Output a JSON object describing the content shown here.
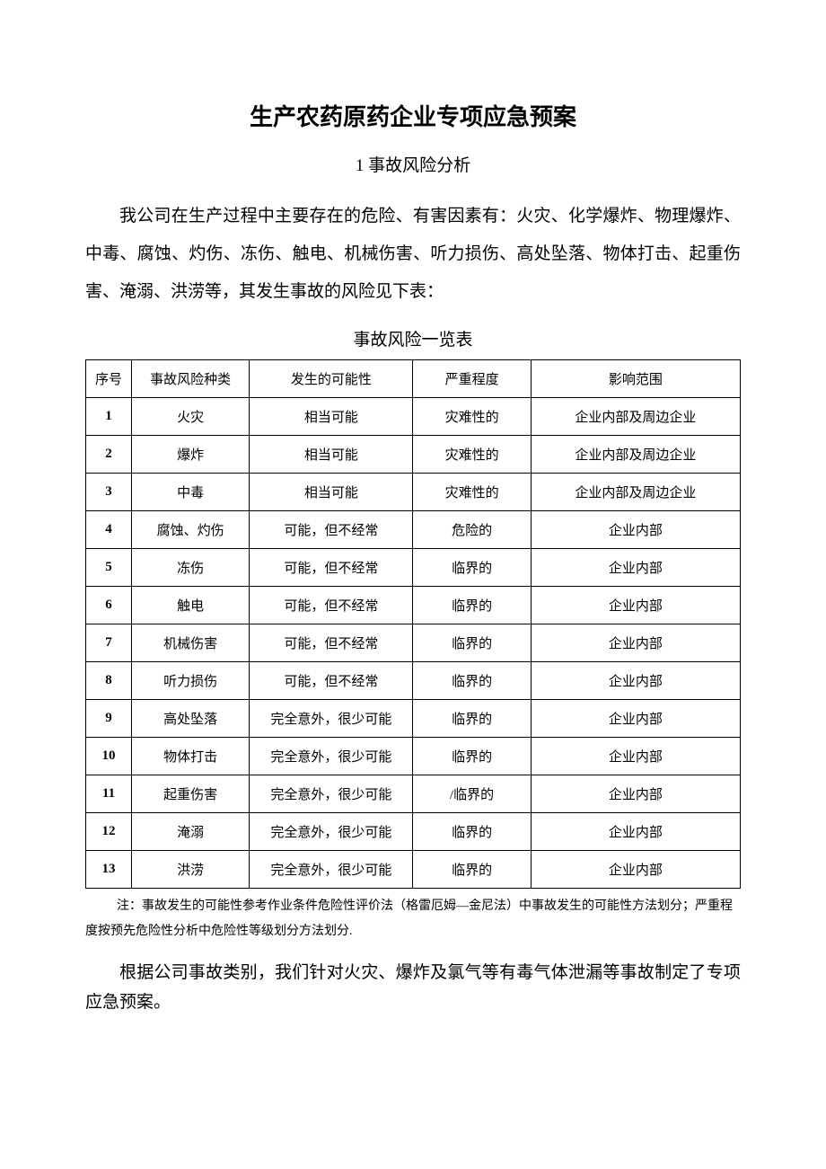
{
  "title": "生产农药原药企业专项应急预案",
  "subtitle": "1 事故风险分析",
  "intro": "我公司在生产过程中主要存在的危险、有害因素有：火灾、化学爆炸、物理爆炸、中毒、腐蚀、灼伤、冻伤、触电、机械伤害、听力损伤、高处坠落、物体打击、起重伤害、淹溺、洪涝等，其发生事故的风险见下表：",
  "table_caption": "事故风险一览表",
  "table": {
    "columns": [
      "序号",
      "事故风险种类",
      "发生的可能性",
      "严重程度",
      "影响范围"
    ],
    "col_widths": [
      "7%",
      "18%",
      "25%",
      "18%",
      "32%"
    ],
    "rows": [
      [
        "1",
        "火灾",
        "相当可能",
        "灾难性的",
        "企业内部及周边企业"
      ],
      [
        "2",
        "爆炸",
        "相当可能",
        "灾难性的",
        "企业内部及周边企业"
      ],
      [
        "3",
        "中毒",
        "相当可能",
        "灾难性的",
        "企业内部及周边企业"
      ],
      [
        "4",
        "腐蚀、灼伤",
        "可能，但不经常",
        "危险的",
        "企业内部"
      ],
      [
        "5",
        "冻伤",
        "可能，但不经常",
        "临界的",
        "企业内部"
      ],
      [
        "6",
        "触电",
        "可能，但不经常",
        "临界的",
        "企业内部"
      ],
      [
        "7",
        "机械伤害",
        "可能，但不经常",
        "临界的",
        "企业内部"
      ],
      [
        "8",
        "听力损伤",
        "可能，但不经常",
        "临界的",
        "企业内部"
      ],
      [
        "9",
        "高处坠落",
        "完全意外，很少可能",
        "临界的",
        "企业内部"
      ],
      [
        "10",
        "物体打击",
        "完全意外，很少可能",
        "临界的",
        "企业内部"
      ],
      [
        "11",
        "起重伤害",
        "完全意外，很少可能",
        "/临界的",
        "企业内部"
      ],
      [
        "12",
        "淹溺",
        "完全意外，很少可能",
        "临界的",
        "企业内部"
      ],
      [
        "13",
        "洪涝",
        "完全意外，很少可能",
        "临界的",
        "企业内部"
      ]
    ]
  },
  "note": "注：事故发生的可能性参考作业条件危险性评价法（格雷厄姆—金尼法）中事故发生的可能性方法划分；严重程度按预先危险性分析中危险性等级划分方法划分.",
  "closing": "根据公司事故类别，我们针对火灾、爆炸及氯气等有毒气体泄漏等事故制定了专项应急预案。"
}
